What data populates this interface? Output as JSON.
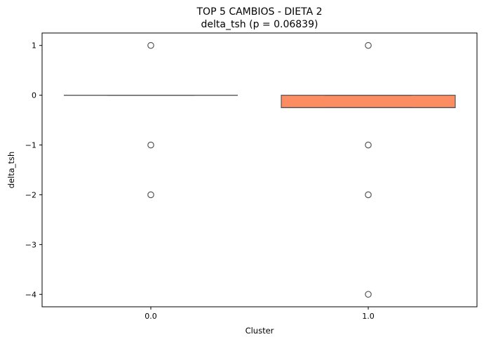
{
  "chart_data": {
    "type": "box",
    "title_line1": "TOP 5 CAMBIOS - DIETA 2",
    "title_line2": "delta_tsh (p = 0.06839)",
    "xlabel": "Cluster",
    "ylabel": "delta_tsh",
    "categories": [
      "0.0",
      "1.0"
    ],
    "ylim": [
      -4.25,
      1.25
    ],
    "yticks": [
      {
        "value": 1,
        "label": "1"
      },
      {
        "value": 0,
        "label": "0"
      },
      {
        "value": -1,
        "label": "−1"
      },
      {
        "value": -2,
        "label": "−2"
      },
      {
        "value": -3,
        "label": "−3"
      },
      {
        "value": -4,
        "label": "−4"
      }
    ],
    "boxes": [
      {
        "category": "0.0",
        "q1": 0,
        "median": 0,
        "q3": 0,
        "whisker_low": 0,
        "whisker_high": 0,
        "outliers": [
          1,
          -1,
          -2
        ],
        "color": "#fc8d62"
      },
      {
        "category": "1.0",
        "q1": -0.25,
        "median": -0.25,
        "q3": 0,
        "whisker_low": -0.25,
        "whisker_high": 0,
        "outliers": [
          1,
          -1,
          -2,
          -4
        ],
        "color": "#fc8d62"
      }
    ],
    "grid": false,
    "legend": "none"
  }
}
